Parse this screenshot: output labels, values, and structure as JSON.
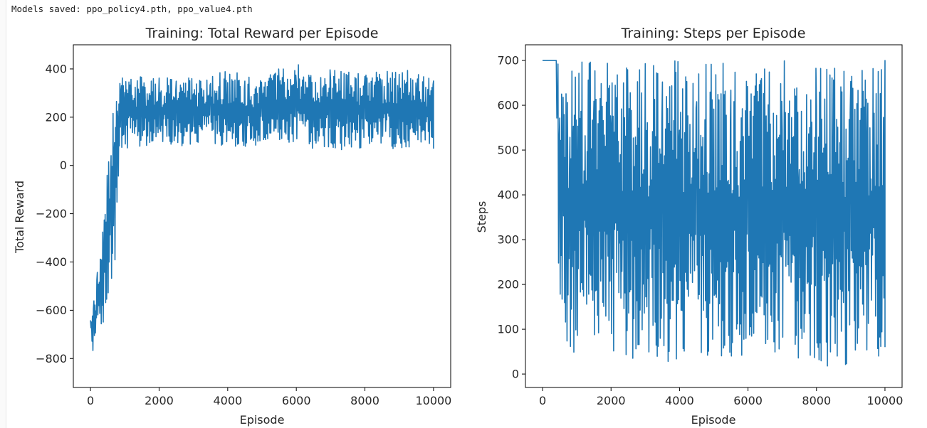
{
  "output": {
    "stdout_text": "Models saved: ppo_policy4.pth, ppo_value4.pth"
  },
  "colors": {
    "series": "#1f77b4",
    "axes": "#000000",
    "text": "#262626",
    "background": "#ffffff"
  },
  "chart_data": [
    {
      "type": "line",
      "title": "Training: Total Reward per Episode",
      "xlabel": "Episode",
      "ylabel": "Total Reward",
      "xlim": [
        -500,
        10500
      ],
      "ylim": [
        -920,
        500
      ],
      "xticks": [
        0,
        2000,
        4000,
        6000,
        8000,
        10000
      ],
      "xtick_labels": [
        "0",
        "2000",
        "4000",
        "6000",
        "8000",
        "10000"
      ],
      "yticks": [
        -800,
        -600,
        -400,
        -200,
        0,
        200,
        400
      ],
      "ytick_labels": [
        "−800",
        "−600",
        "−400",
        "−200",
        "0",
        "200",
        "400"
      ],
      "grid": false,
      "legend": "none",
      "series_note": "noisy per-episode reward, 10000 episodes; values approximated as min/max envelope per episode bucket",
      "series": [
        {
          "x": [
            0,
            100,
            200,
            300,
            400,
            500,
            600,
            700,
            800,
            900,
            1000,
            1500,
            2000,
            2500,
            3000,
            3500,
            4000,
            4500,
            5000,
            5500,
            6000,
            6500,
            7000,
            7500,
            8000,
            8500,
            9000,
            9500,
            10000
          ],
          "min": [
            -730,
            -860,
            -700,
            -680,
            -640,
            -600,
            -520,
            -450,
            -80,
            60,
            70,
            80,
            90,
            80,
            80,
            85,
            80,
            70,
            75,
            80,
            80,
            60,
            65,
            65,
            70,
            70,
            70,
            70,
            70
          ],
          "max": [
            -570,
            -540,
            -440,
            -300,
            -150,
            60,
            230,
            250,
            330,
            375,
            370,
            375,
            365,
            370,
            360,
            380,
            395,
            380,
            370,
            410,
            420,
            400,
            405,
            395,
            390,
            400,
            395,
            400,
            350
          ]
        }
      ]
    },
    {
      "type": "line",
      "title": "Training: Steps per Episode",
      "xlabel": "Episode",
      "ylabel": "Steps",
      "xlim": [
        -500,
        10500
      ],
      "ylim": [
        -30,
        735
      ],
      "xticks": [
        0,
        2000,
        4000,
        6000,
        8000,
        10000
      ],
      "xtick_labels": [
        "0",
        "2000",
        "4000",
        "6000",
        "8000",
        "10000"
      ],
      "yticks": [
        0,
        100,
        200,
        300,
        400,
        500,
        600,
        700
      ],
      "ytick_labels": [
        "0",
        "100",
        "200",
        "300",
        "400",
        "500",
        "600",
        "700"
      ],
      "grid": false,
      "legend": "none",
      "series_note": "per-episode steps, capped at 700; values approximated as min/max envelope per episode bucket",
      "series": [
        {
          "x": [
            0,
            400,
            450,
            500,
            600,
            700,
            800,
            900,
            1000,
            1500,
            2000,
            2500,
            3000,
            3500,
            4000,
            4500,
            5000,
            5500,
            6000,
            6500,
            7000,
            7500,
            8000,
            8500,
            9000,
            9500,
            10000
          ],
          "min": [
            700,
            700,
            30,
            150,
            170,
            10,
            20,
            40,
            60,
            60,
            50,
            40,
            20,
            30,
            10,
            30,
            40,
            20,
            15,
            10,
            20,
            15,
            10,
            20,
            10,
            5,
            60
          ],
          "max": [
            700,
            700,
            700,
            700,
            700,
            700,
            700,
            700,
            700,
            700,
            700,
            700,
            700,
            700,
            700,
            700,
            700,
            700,
            700,
            700,
            700,
            700,
            700,
            700,
            700,
            700,
            700
          ]
        }
      ]
    }
  ]
}
